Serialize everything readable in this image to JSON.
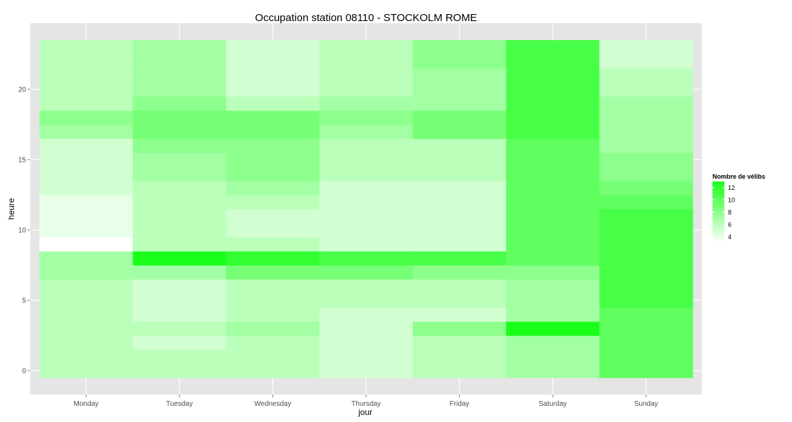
{
  "chart_data": {
    "type": "heatmap",
    "title": "Occupation station 08110 - STOCKOLM ROME",
    "xlabel": "jour",
    "ylabel": "heure",
    "x_categories": [
      "Monday",
      "Tuesday",
      "Wednesday",
      "Thursday",
      "Friday",
      "Saturday",
      "Sunday"
    ],
    "y_values": [
      0,
      1,
      2,
      3,
      4,
      5,
      6,
      7,
      8,
      9,
      10,
      11,
      12,
      13,
      14,
      15,
      16,
      17,
      18,
      19,
      20,
      21,
      22,
      23
    ],
    "y_ticks": [
      0,
      5,
      10,
      15,
      20
    ],
    "ylim": [
      -0.5,
      23.5
    ],
    "grid": true,
    "value_matrix_rows_by_day": [
      [
        6,
        6,
        6,
        6,
        6,
        6,
        6,
        7,
        7,
        3,
        4,
        4,
        4,
        5,
        5,
        5,
        5,
        7,
        8,
        6,
        6,
        6,
        6,
        6
      ],
      [
        6,
        6,
        5,
        6,
        5,
        5,
        5,
        7,
        13,
        6,
        6,
        6,
        6,
        6,
        7,
        7,
        8,
        9,
        9,
        8,
        7,
        7,
        7,
        7
      ],
      [
        6,
        6,
        6,
        7,
        6,
        6,
        6,
        9,
        12,
        6,
        5,
        5,
        6,
        7,
        8,
        8,
        8,
        9,
        9,
        6,
        5,
        5,
        5,
        5
      ],
      [
        5,
        5,
        5,
        5,
        5,
        6,
        6,
        9,
        11,
        5,
        5,
        5,
        5,
        5,
        6,
        6,
        6,
        7,
        8,
        7,
        6,
        6,
        6,
        6
      ],
      [
        6,
        6,
        6,
        8,
        5,
        6,
        6,
        8,
        11,
        5,
        5,
        5,
        5,
        5,
        6,
        6,
        6,
        9,
        9,
        7,
        7,
        7,
        8,
        8
      ],
      [
        7,
        7,
        7,
        13,
        7,
        7,
        7,
        8,
        10,
        10,
        10,
        10,
        10,
        10,
        10,
        10,
        10,
        11,
        11,
        11,
        11,
        11,
        11,
        11
      ],
      [
        10,
        10,
        10,
        10,
        10,
        11,
        11,
        11,
        11,
        11,
        11,
        11,
        10,
        9,
        8,
        8,
        7,
        7,
        7,
        7,
        6,
        6,
        5,
        5
      ]
    ],
    "legend": {
      "title": "Nombre de vélibs",
      "labels": [
        "12",
        "10",
        "8",
        "6",
        "4"
      ],
      "ticks": [
        12,
        10,
        8,
        6,
        4
      ],
      "range": [
        3,
        13
      ],
      "placement": "right"
    },
    "colors": {
      "low": "#ffffff",
      "high": "#1aff1a",
      "panel": "#e5e5e5",
      "grid": "#ffffff"
    }
  }
}
